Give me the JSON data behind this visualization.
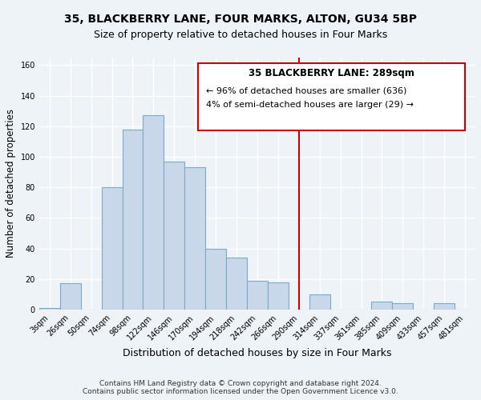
{
  "title": "35, BLACKBERRY LANE, FOUR MARKS, ALTON, GU34 5BP",
  "subtitle": "Size of property relative to detached houses in Four Marks",
  "xlabel": "Distribution of detached houses by size in Four Marks",
  "ylabel": "Number of detached properties",
  "bar_color": "#c8d8ea",
  "bar_edge_color": "#7aaac8",
  "vline_color": "#cc0000",
  "background_color": "#eef3f8",
  "annotation_border_color": "#cc0000",
  "annotation_title": "35 BLACKBERRY LANE: 289sqm",
  "annotation_line1": "← 96% of detached houses are smaller (636)",
  "annotation_line2": "4% of semi-detached houses are larger (29) →",
  "categories": [
    "3sqm",
    "26sqm",
    "50sqm",
    "74sqm",
    "98sqm",
    "122sqm",
    "146sqm",
    "170sqm",
    "194sqm",
    "218sqm",
    "242sqm",
    "266sqm",
    "290sqm",
    "314sqm",
    "337sqm",
    "361sqm",
    "385sqm",
    "409sqm",
    "433sqm",
    "457sqm",
    "481sqm"
  ],
  "values": [
    1,
    17,
    0,
    80,
    118,
    127,
    97,
    93,
    40,
    34,
    19,
    18,
    0,
    10,
    0,
    0,
    5,
    4,
    0,
    4,
    0
  ],
  "ylim": [
    0,
    165
  ],
  "yticks": [
    0,
    20,
    40,
    60,
    80,
    100,
    120,
    140,
    160
  ],
  "vline_index": 12,
  "footnote1": "Contains HM Land Registry data © Crown copyright and database right 2024.",
  "footnote2": "Contains public sector information licensed under the Open Government Licence v3.0."
}
